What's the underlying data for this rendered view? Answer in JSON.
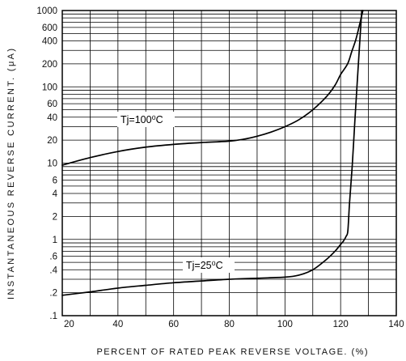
{
  "chart_data": {
    "type": "line",
    "title": "",
    "xlabel": "PERCENT OF RATED PEAK REVERSE VOLTAGE. (%)",
    "ylabel": "INSTANTANEOUS REVERSE CURRENT. (μA)",
    "x_scale": "linear",
    "y_scale": "log",
    "xlim": [
      20,
      140
    ],
    "ylim": [
      0.1,
      1000
    ],
    "grid": true,
    "legend": "none",
    "x_ticks": [
      {
        "value": 20,
        "label": "20"
      },
      {
        "value": 40,
        "label": "40"
      },
      {
        "value": 60,
        "label": "60"
      },
      {
        "value": 80,
        "label": "80"
      },
      {
        "value": 100,
        "label": "100"
      },
      {
        "value": 120,
        "label": "120"
      },
      {
        "value": 140,
        "label": "140"
      }
    ],
    "y_ticks": [
      {
        "value": 1000,
        "label": "1000"
      },
      {
        "value": 600,
        "label": "600"
      },
      {
        "value": 400,
        "label": "400"
      },
      {
        "value": 200,
        "label": "200"
      },
      {
        "value": 100,
        "label": "100"
      },
      {
        "value": 60,
        "label": "60"
      },
      {
        "value": 40,
        "label": "40"
      },
      {
        "value": 20,
        "label": "20"
      },
      {
        "value": 10,
        "label": "10"
      },
      {
        "value": 6,
        "label": "6"
      },
      {
        "value": 4,
        "label": "4"
      },
      {
        "value": 2,
        "label": "2"
      },
      {
        "value": 1,
        "label": "1"
      },
      {
        "value": 0.6,
        "label": ".6"
      },
      {
        "value": 0.4,
        "label": ".4"
      },
      {
        "value": 0.2,
        "label": ".2"
      },
      {
        "value": 0.1,
        "label": ".1"
      }
    ],
    "series": [
      {
        "name": "Tj=100⁰C",
        "color": "#000000",
        "points": [
          [
            20,
            9.4
          ],
          [
            30,
            11.8
          ],
          [
            40,
            14.2
          ],
          [
            50,
            16.2
          ],
          [
            60,
            17.6
          ],
          [
            70,
            18.6
          ],
          [
            80,
            19.4
          ],
          [
            85,
            20.5
          ],
          [
            90,
            22.5
          ],
          [
            95,
            25.5
          ],
          [
            100,
            30
          ],
          [
            105,
            37
          ],
          [
            110,
            50
          ],
          [
            115,
            75
          ],
          [
            118,
            105
          ],
          [
            120,
            145
          ],
          [
            122.5,
            200
          ],
          [
            124,
            290
          ],
          [
            125.5,
            420
          ],
          [
            126.8,
            650
          ],
          [
            128,
            1000
          ]
        ]
      },
      {
        "name": "Tj=25⁰C",
        "color": "#000000",
        "points": [
          [
            20,
            0.185
          ],
          [
            30,
            0.205
          ],
          [
            40,
            0.23
          ],
          [
            50,
            0.25
          ],
          [
            60,
            0.27
          ],
          [
            70,
            0.285
          ],
          [
            80,
            0.3
          ],
          [
            90,
            0.31
          ],
          [
            100,
            0.32
          ],
          [
            105,
            0.34
          ],
          [
            110,
            0.4
          ],
          [
            115,
            0.55
          ],
          [
            118,
            0.7
          ],
          [
            120,
            0.86
          ],
          [
            121,
            0.95
          ],
          [
            122,
            1.1
          ],
          [
            122.6,
            1.3
          ],
          [
            123.2,
            3
          ],
          [
            124.2,
            9.6
          ],
          [
            125.1,
            35
          ],
          [
            126,
            120
          ],
          [
            126.9,
            400
          ],
          [
            127.6,
            1000
          ]
        ]
      }
    ]
  }
}
